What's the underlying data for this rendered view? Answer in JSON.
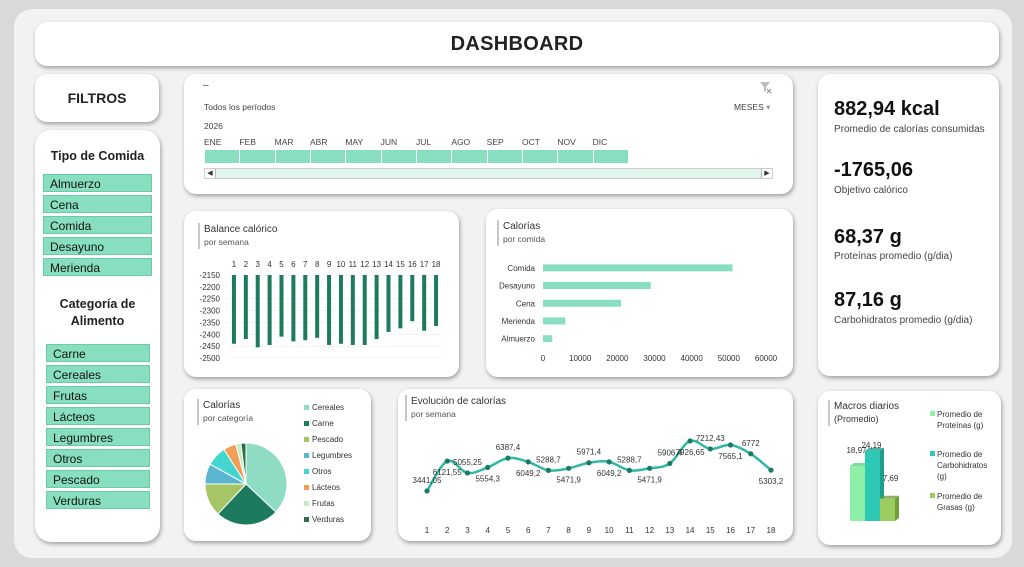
{
  "dashboard": {
    "title": "DASHBOARD"
  },
  "filters": {
    "title": "FILTROS",
    "tipo_comida": {
      "title": "Tipo de Comida",
      "items": [
        "Almuerzo",
        "Cena",
        "Comida",
        "Desayuno",
        "Merienda"
      ]
    },
    "categoria": {
      "title_line1": "Categoría de",
      "title_line2": "Alimento",
      "items": [
        "Carne",
        "Cereales",
        "Frutas",
        "Lácteos",
        "Legumbres",
        "Otros",
        "Pescado",
        "Verduras"
      ]
    }
  },
  "timeline": {
    "dash": "–",
    "period_label": "Todos los períodos",
    "level_label": "MESES",
    "year": "2026",
    "months": [
      "ENE",
      "FEB",
      "MAR",
      "ABR",
      "MAY",
      "JUN",
      "JUL",
      "AGO",
      "SEP",
      "OCT",
      "NOV",
      "DIC"
    ],
    "filter_icon": "clear-filter-icon",
    "accent": "#88dfc0"
  },
  "kpis": [
    {
      "value": "882,94 kcal",
      "label": "Promedio de calorías consumidas"
    },
    {
      "value": "-1765,06",
      "label": "Objetivo calórico"
    },
    {
      "value": "68,37 g",
      "label": "Proteínas promedio (g/dia)"
    },
    {
      "value": "87,16 g",
      "label": "Carbohidratos promedio (g/dia)"
    }
  ],
  "charts": {
    "balance": {
      "title": "Balance calórico",
      "subtitle": "por semana"
    },
    "calorias_comida": {
      "title": "Calorías",
      "subtitle": "por comida"
    },
    "calorias_categoria": {
      "title": "Calorías",
      "subtitle": "por categoría"
    },
    "evolucion": {
      "title": "Evolución de calorías",
      "subtitle": "por semana"
    },
    "macros": {
      "title": "Macros diarios",
      "subtitle": "(Promedio)"
    }
  },
  "chart_data": [
    {
      "id": "balance",
      "type": "bar",
      "title": "Balance calórico",
      "x": [
        1,
        2,
        3,
        4,
        5,
        6,
        7,
        8,
        9,
        10,
        11,
        12,
        13,
        14,
        15,
        16,
        17,
        18
      ],
      "values": [
        -2440,
        -2420,
        -2455,
        -2445,
        -2410,
        -2430,
        -2425,
        -2415,
        -2445,
        -2440,
        -2445,
        -2445,
        -2420,
        -2390,
        -2375,
        -2345,
        -2385,
        -2365
      ],
      "yticks": [
        -2150,
        -2200,
        -2250,
        -2300,
        -2350,
        -2400,
        -2450,
        -2500
      ],
      "ylim": [
        -2500,
        -2150
      ],
      "color": "#1e7a5e"
    },
    {
      "id": "calorias_comida",
      "type": "bar",
      "orientation": "horizontal",
      "title": "Calorías",
      "categories": [
        "Comida",
        "Desayuno",
        "Cena",
        "Merienda",
        "Almuerzo"
      ],
      "values": [
        51000,
        29000,
        21000,
        6000,
        2500
      ],
      "xticks": [
        0,
        10000,
        20000,
        30000,
        40000,
        50000,
        60000
      ],
      "xlim": [
        0,
        60000
      ],
      "color": "#88dfc0"
    },
    {
      "id": "calorias_categoria",
      "type": "pie",
      "title": "Calorías",
      "categories": [
        "Cereales",
        "Carne",
        "Pescado",
        "Legumbres",
        "Otros",
        "Lácteos",
        "Frutas",
        "Verduras"
      ],
      "values": [
        37,
        25,
        13,
        8,
        8,
        5,
        2,
        2
      ],
      "colors": [
        "#8fdcc4",
        "#1e7a5e",
        "#a6c565",
        "#5ab5d0",
        "#42d6cf",
        "#f29e57",
        "#c4eec0",
        "#2e6e42"
      ]
    },
    {
      "id": "evolucion",
      "type": "line",
      "title": "Evolución de calorías",
      "x": [
        1,
        2,
        3,
        4,
        5,
        6,
        7,
        8,
        9,
        10,
        11,
        12,
        13,
        14,
        15,
        16,
        17,
        18
      ],
      "values": [
        3441.05,
        6121.55,
        5055.25,
        5554.3,
        6387.4,
        6049.2,
        5288.7,
        5471.9,
        5971.4,
        6049.2,
        5288.7,
        5471.9,
        5906.4,
        7926.65,
        7212.43,
        7565.1,
        6772,
        5303.2
      ],
      "labels": [
        "3441,05",
        "6121,55",
        "5055,25",
        "5554,3",
        "6387,4",
        "6049,2",
        "5288,7",
        "5471,9",
        "5971,4",
        "6049,2",
        "5288,7",
        "5471,9",
        "5906,4",
        "7926,65",
        "7212,43",
        "7565,1",
        "6772",
        "5303,2"
      ],
      "color": "#2fb8a4"
    },
    {
      "id": "macros",
      "type": "bar",
      "title": "Macros diarios",
      "categories": [
        "Promedio de Proteínas (g)",
        "Promedio de Carbohidratos (g)",
        "Promedio de Grasas (g)"
      ],
      "values": [
        18.97,
        24.19,
        7.69
      ],
      "labels": [
        "18,97",
        "24,19",
        "7,69"
      ],
      "colors": [
        "#8ef0a8",
        "#2ec9b5",
        "#9dcc5e"
      ]
    }
  ]
}
